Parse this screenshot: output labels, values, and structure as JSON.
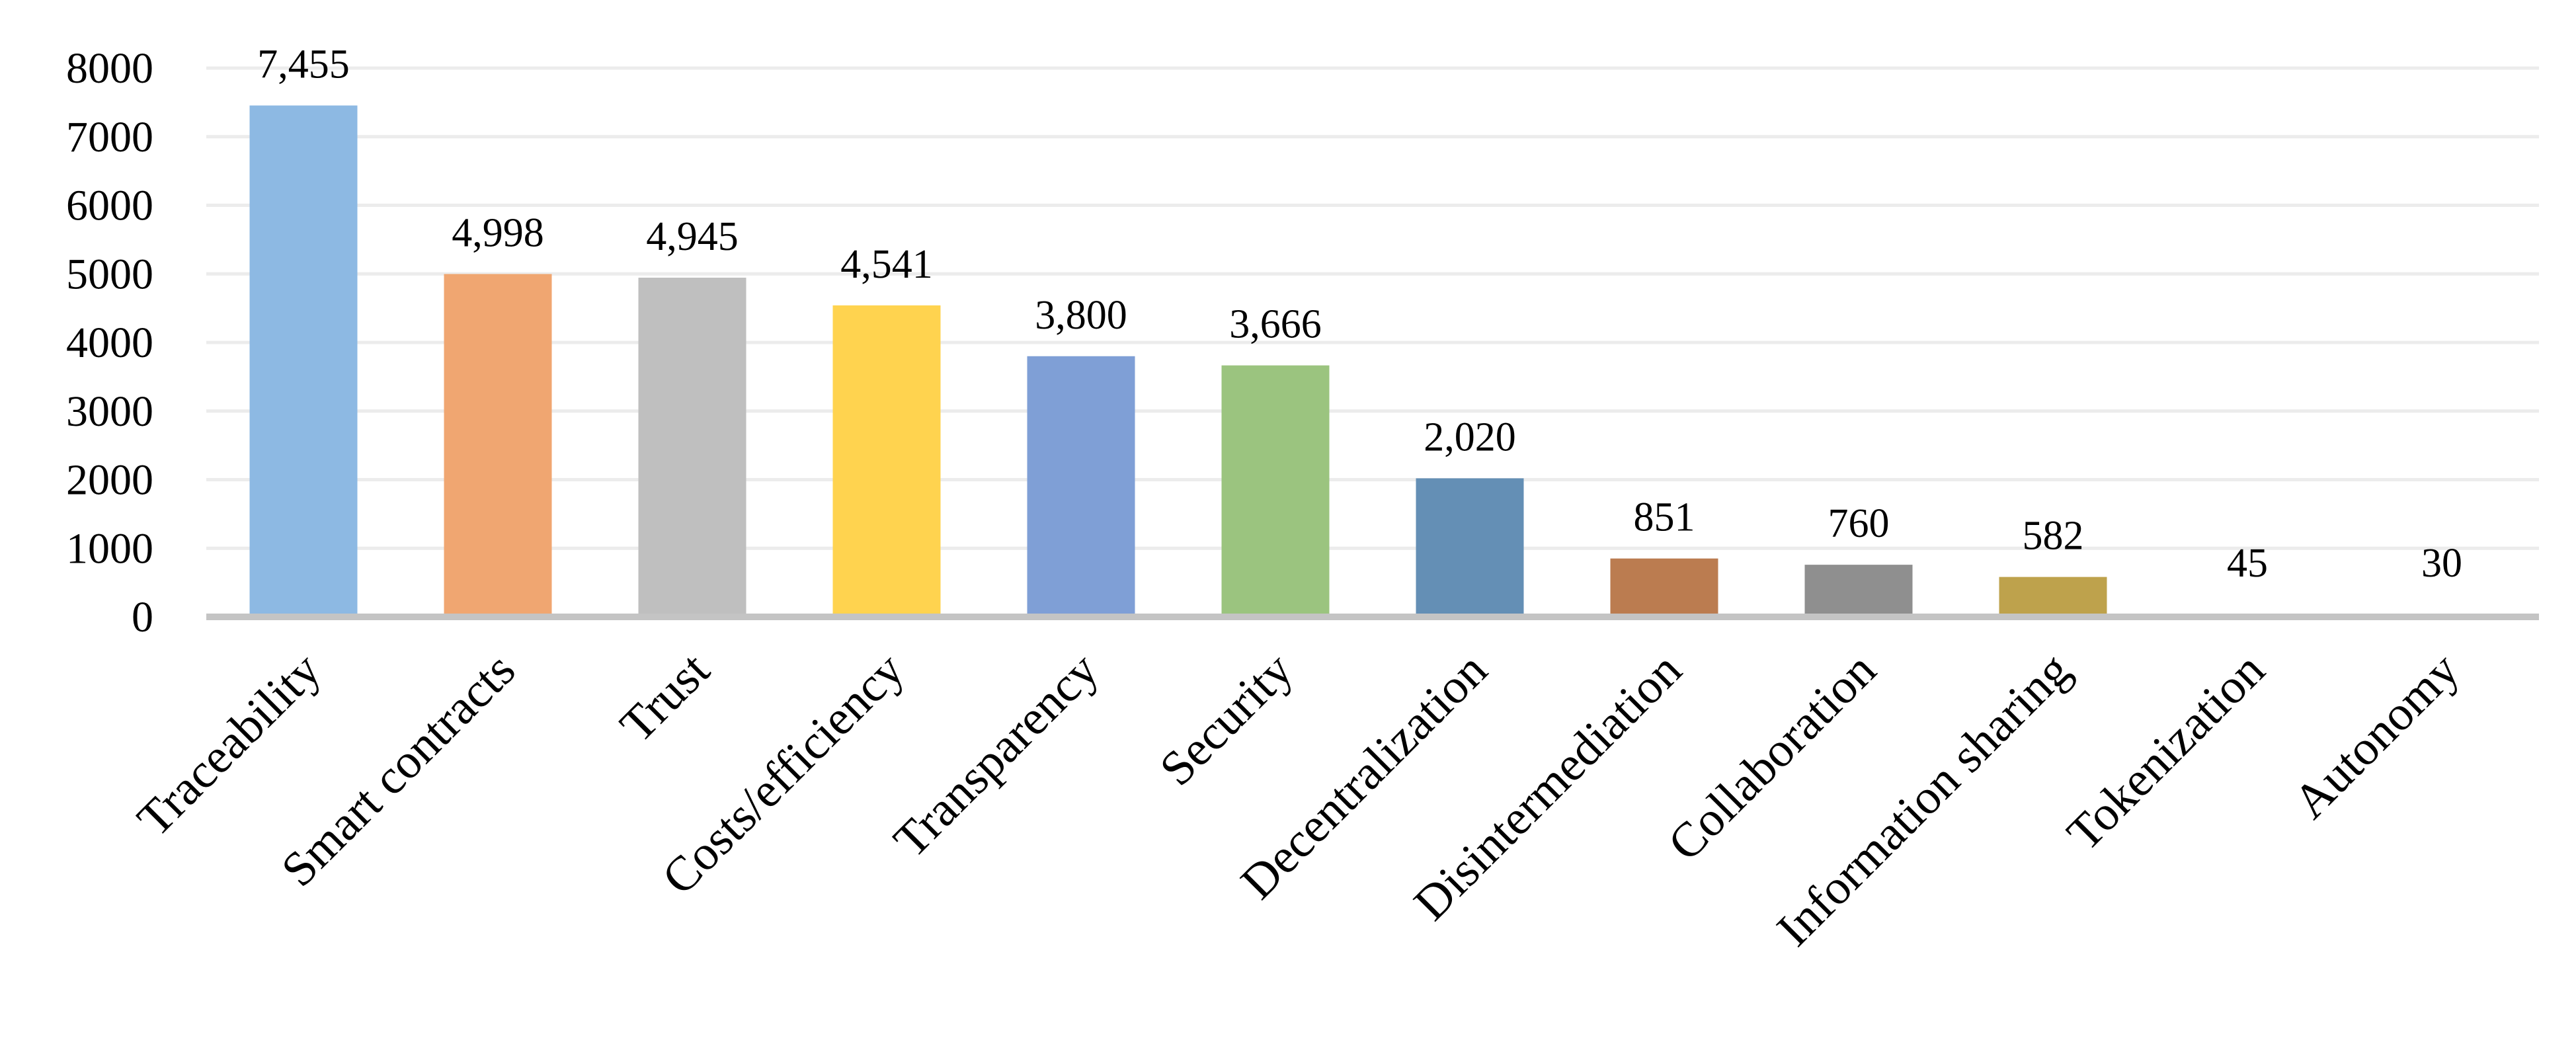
{
  "chart_data": {
    "type": "bar",
    "title": "",
    "xlabel": "",
    "ylabel": "",
    "ylim": [
      0,
      8000
    ],
    "yticks": [
      0,
      1000,
      2000,
      3000,
      4000,
      5000,
      6000,
      7000,
      8000
    ],
    "ytick_labels": [
      "0",
      "1000",
      "2000",
      "3000",
      "4000",
      "5000",
      "6000",
      "7000",
      "8000"
    ],
    "grid": true,
    "legend": "none",
    "categories": [
      "Traceability",
      "Smart contracts",
      "Trust",
      "Costs/efficiency",
      "Transparency",
      "Security",
      "Decentralization",
      "Disintermediation",
      "Collaboration",
      "Information sharing",
      "Tokenization",
      "Autonomy"
    ],
    "values": [
      7455,
      4998,
      4945,
      4541,
      3800,
      3666,
      2020,
      851,
      760,
      582,
      45,
      30
    ],
    "data_labels": [
      "7,455",
      "4,998",
      "4,945",
      "4,541",
      "3,800",
      "3,666",
      "2,020",
      "851",
      "760",
      "582",
      "45",
      "30"
    ],
    "colors": [
      "#8db9e3",
      "#f0a671",
      "#bfbfbf",
      "#ffd34f",
      "#7f9fd6",
      "#9bc47f",
      "#648fb5",
      "#bb7c50",
      "#8f8f8f",
      "#bea24c",
      "#a9c3e3",
      "#f2b08a"
    ]
  }
}
